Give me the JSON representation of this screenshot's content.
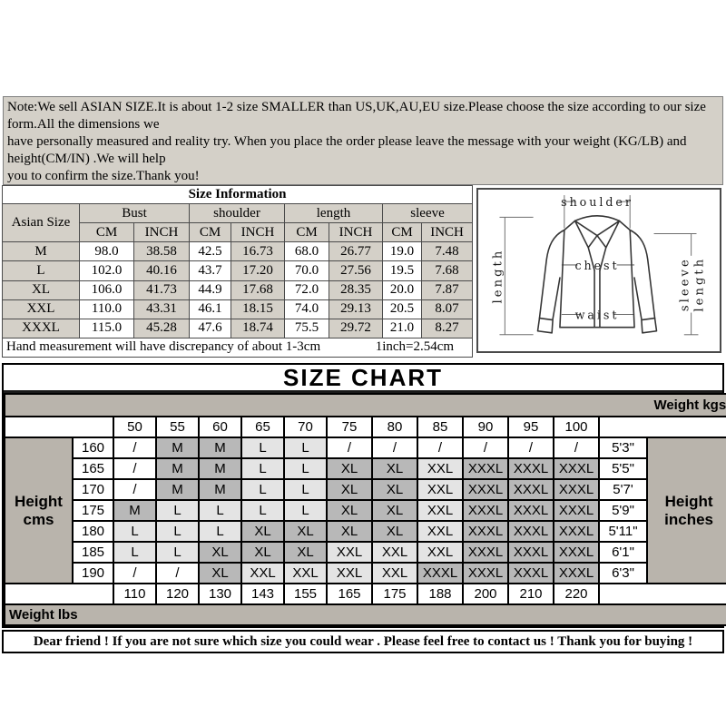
{
  "colors": {
    "panel_gray": "#d4d0c8",
    "band_gray": "#b9b4ac",
    "cell_dark": "#b8b8b8",
    "cell_light": "#e4e4e4"
  },
  "note": {
    "lines": [
      "Note:We sell ASIAN SIZE.It is about 1-2 size SMALLER than US,UK,AU,EU size.Please choose the size according to our size",
      "form.All the dimensions we",
      "have personally measured and reality try. When you place the order please leave the message with your weight (KG/LB) and",
      "height(CM/IN) .We will help",
      "you to confirm the size.Thank you!"
    ]
  },
  "size_information": {
    "title": "Size Information",
    "row_header": "Asian Size",
    "groups": [
      "Bust",
      "shoulder",
      "length",
      "sleeve"
    ],
    "unit_cm": "CM",
    "unit_inch": "INCH",
    "rows": [
      {
        "size": "M",
        "values": [
          "98.0",
          "38.58",
          "42.5",
          "16.73",
          "68.0",
          "26.77",
          "19.0",
          "7.48"
        ]
      },
      {
        "size": "L",
        "values": [
          "102.0",
          "40.16",
          "43.7",
          "17.20",
          "70.0",
          "27.56",
          "19.5",
          "7.68"
        ]
      },
      {
        "size": "XL",
        "values": [
          "106.0",
          "41.73",
          "44.9",
          "17.68",
          "72.0",
          "28.35",
          "20.0",
          "7.87"
        ]
      },
      {
        "size": "XXL",
        "values": [
          "110.0",
          "43.31",
          "46.1",
          "18.15",
          "74.0",
          "29.13",
          "20.5",
          "8.07"
        ]
      },
      {
        "size": "XXXL",
        "values": [
          "115.0",
          "45.28",
          "47.6",
          "18.74",
          "75.5",
          "29.72",
          "21.0",
          "8.27"
        ]
      }
    ],
    "footnote_left": "Hand measurement will have discrepancy of about 1-3cm",
    "footnote_right": "1inch=2.54cm"
  },
  "diagram": {
    "labels": {
      "shoulder": "shoulder",
      "length": "length",
      "chest": "chest",
      "waist": "waist",
      "sleeve_length": "sleeve length"
    }
  },
  "size_chart": {
    "title": "SIZE CHART",
    "weight_kgs_label": "Weight kgs",
    "weight_lbs_label": "Weight lbs",
    "height_cms_label": "Height cms",
    "height_inches_label": "Height inches",
    "weight_columns": [
      "50",
      "55",
      "60",
      "65",
      "70",
      "75",
      "80",
      "85",
      "90",
      "95",
      "100"
    ],
    "rows": [
      {
        "height_cm": "160",
        "cells": [
          "/",
          "M",
          "M",
          "L",
          "L",
          "/",
          "/",
          "/",
          "/",
          "/",
          "/"
        ],
        "height_in": "5'3\""
      },
      {
        "height_cm": "165",
        "cells": [
          "/",
          "M",
          "M",
          "L",
          "L",
          "XL",
          "XL",
          "XXL",
          "XXXL",
          "XXXL",
          "XXXL"
        ],
        "height_in": "5'5\""
      },
      {
        "height_cm": "170",
        "cells": [
          "/",
          "M",
          "M",
          "L",
          "L",
          "XL",
          "XL",
          "XXL",
          "XXXL",
          "XXXL",
          "XXXL"
        ],
        "height_in": "5'7'"
      },
      {
        "height_cm": "175",
        "cells": [
          "M",
          "L",
          "L",
          "L",
          "L",
          "XL",
          "XL",
          "XXL",
          "XXXL",
          "XXXL",
          "XXXL"
        ],
        "height_in": "5'9\""
      },
      {
        "height_cm": "180",
        "cells": [
          "L",
          "L",
          "L",
          "XL",
          "XL",
          "XL",
          "XL",
          "XXL",
          "XXXL",
          "XXXL",
          "XXXL"
        ],
        "height_in": "5'11\""
      },
      {
        "height_cm": "185",
        "cells": [
          "L",
          "L",
          "XL",
          "XL",
          "XL",
          "XXL",
          "XXL",
          "XXL",
          "XXXL",
          "XXXL",
          "XXXL"
        ],
        "height_in": "6'1\""
      },
      {
        "height_cm": "190",
        "cells": [
          "/",
          "/",
          "XL",
          "XXL",
          "XXL",
          "XXL",
          "XXL",
          "XXXL",
          "XXXL",
          "XXXL",
          "XXXL"
        ],
        "height_in": "6'3\""
      }
    ],
    "weight_lbs_values": [
      "110",
      "120",
      "130",
      "143",
      "155",
      "165",
      "175",
      "188",
      "200",
      "210",
      "220"
    ],
    "shaded_dark_sizes": [
      "M",
      "XL",
      "XXXL"
    ],
    "shaded_light_sizes": [
      "L",
      "XXL"
    ],
    "empty_cell_mark": "/"
  },
  "message": "Dear friend ! If you are not sure which size you could wear . Please feel free to contact us ! Thank you for buying !"
}
